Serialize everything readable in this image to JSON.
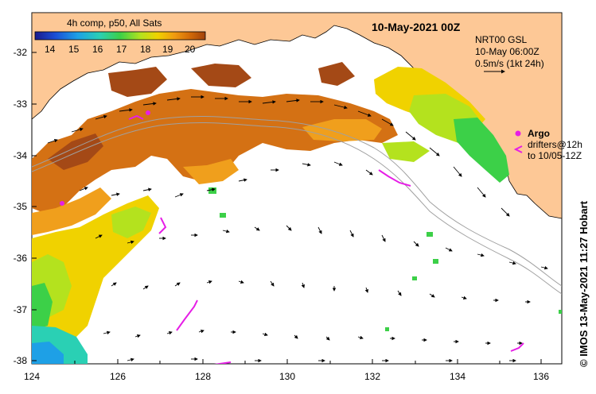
{
  "title": "10-May-2021 00Z",
  "colorbar": {
    "title": "4h comp, p50, All Sats",
    "ticks": [
      "14",
      "15",
      "16",
      "17",
      "18",
      "19",
      "20"
    ],
    "colors": [
      "#1a1a8c",
      "#1a4fd6",
      "#1ea0e6",
      "#2ad0b4",
      "#3cd048",
      "#b4e21e",
      "#f0d200",
      "#f09a10",
      "#d26a08",
      "#a0400a"
    ]
  },
  "currents_info": {
    "product": "NRT00 GSL",
    "time": "10-May 06:00Z",
    "scale": "0.5m/s (1kt 24h)"
  },
  "legend": {
    "argo": "Argo",
    "drifters_line1": "drifters@12h",
    "drifters_line2": "to 10/05-12Z"
  },
  "axes": {
    "x_ticks": [
      "124",
      "126",
      "128",
      "130",
      "132",
      "134",
      "136"
    ],
    "y_ticks": [
      "-32",
      "-33",
      "-34",
      "-35",
      "-36",
      "-37",
      "-38"
    ]
  },
  "credit": "© IMOS 13-May-2021 11:27 Hobart",
  "colors": {
    "land": "#fdc896",
    "warm_sst": "#d26a08",
    "hot_sst": "#a0400a",
    "mid_sst": "#f0d200",
    "cool_sst": "#3cd048",
    "cold_sst": "#1ea0e6",
    "drifter": "#e61ee6",
    "argo": "#e61ee6",
    "bathymetry": "#a0a0a0"
  }
}
